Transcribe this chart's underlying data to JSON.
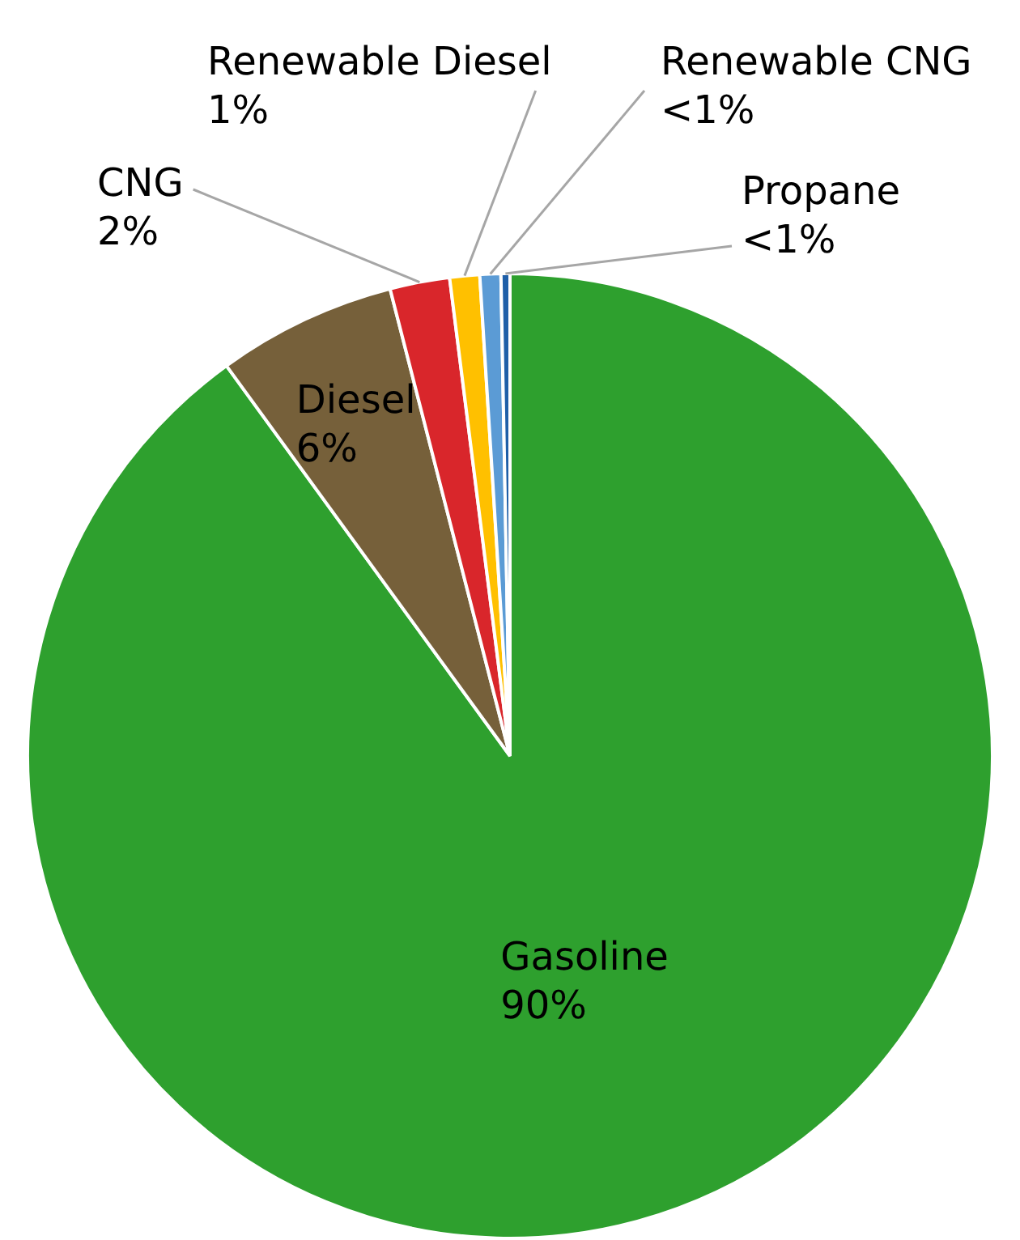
{
  "chart_data": {
    "type": "pie",
    "categories": [
      "Gasoline",
      "Diesel",
      "CNG",
      "Renewable Diesel",
      "Renewable CNG",
      "Propane"
    ],
    "values": [
      90,
      6,
      2,
      1,
      0.7,
      0.3
    ],
    "value_labels": [
      "90%",
      "6%",
      "2%",
      "1%",
      "<1%",
      "<1%"
    ],
    "colors": [
      "#2ea02e",
      "#76603a",
      "#d9262b",
      "#ffc000",
      "#5b9bd5",
      "#1f5fa8"
    ],
    "legend": false
  }
}
